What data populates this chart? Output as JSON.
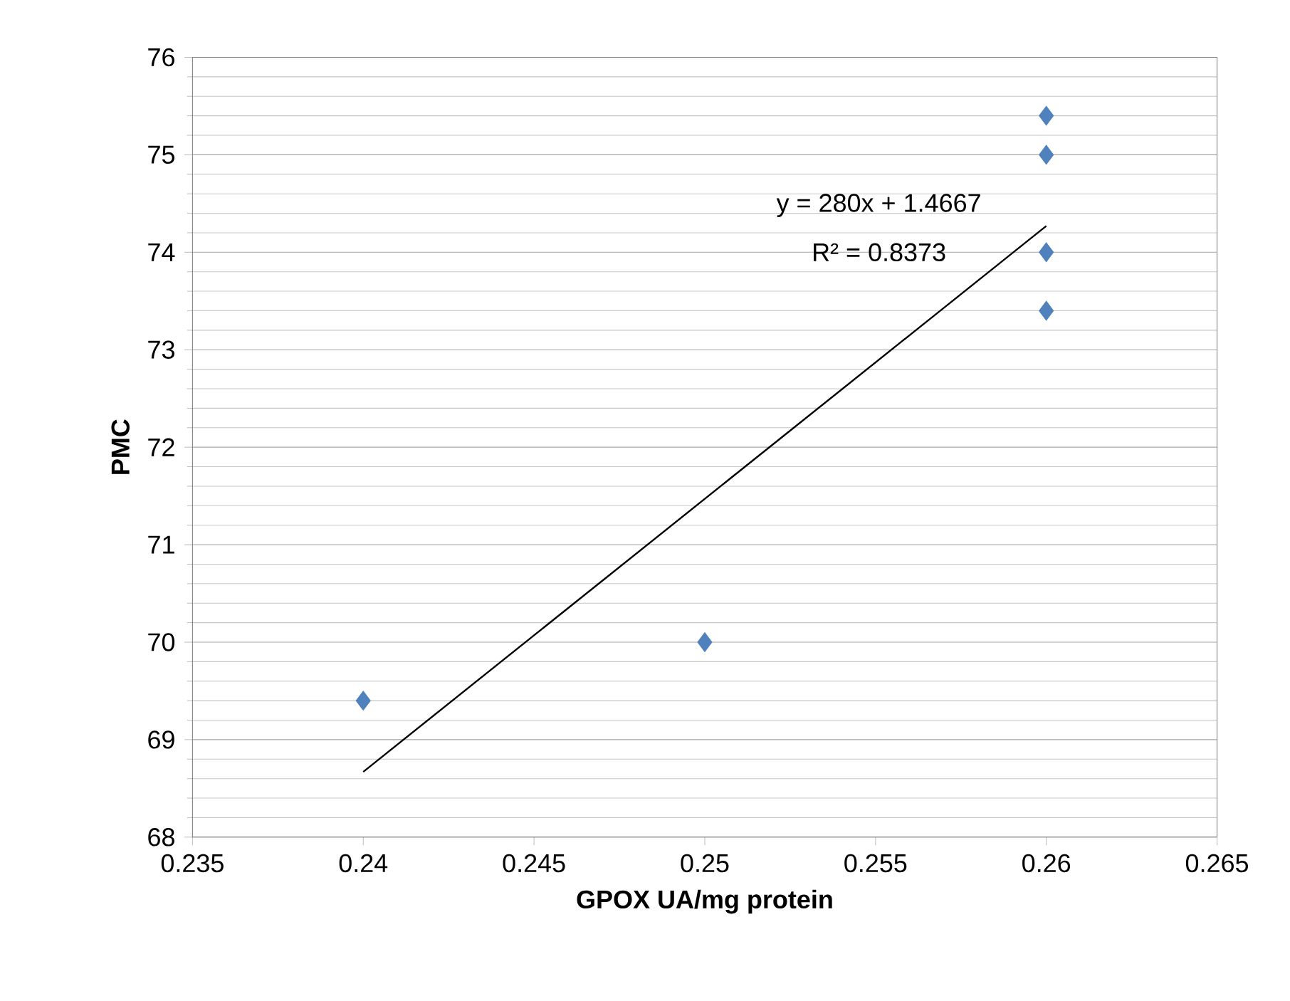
{
  "chart_data": {
    "type": "scatter",
    "xlabel": "GPOX UA/mg protein",
    "ylabel": "PMC",
    "series": [
      {
        "color": "#4f81bd",
        "marker": "diamond",
        "x": [
          0.24,
          0.25,
          0.26,
          0.26,
          0.26,
          0.26
        ],
        "values": [
          69.4,
          70,
          73.4,
          74,
          75,
          75.4
        ]
      },
      {
        "type": "line",
        "color": "#000000",
        "marker": "none",
        "x": [
          0.24,
          0.26
        ],
        "values": [
          68.67,
          74.27
        ]
      }
    ],
    "xlim": [
      0.235,
      0.265
    ],
    "xticks": [
      0.235,
      0.24,
      0.245,
      0.25,
      0.255,
      0.26,
      0.265
    ],
    "ylim": [
      68,
      76
    ],
    "yticks": [
      68,
      69,
      70,
      71,
      72,
      73,
      74,
      75,
      76
    ],
    "grid": "y",
    "annotations": [
      "y = 280x + 1.4667",
      "R² = 0.8373"
    ]
  }
}
